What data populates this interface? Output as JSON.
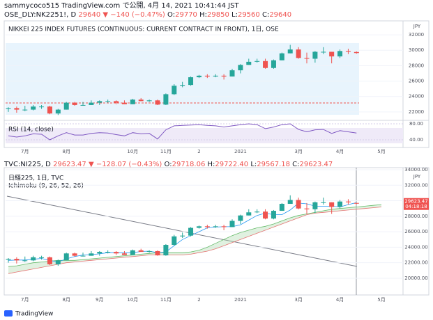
{
  "page": {
    "author_line": "sammycoco515 TradingView.com で公開, 4月 14, 2021 10:41:44 JST",
    "footer": "TradingView"
  },
  "chart_data": [
    {
      "type": "candlestick",
      "symbol": "OSE_DLY:NK2251!, D",
      "last": "29640",
      "change": "▼ −140 (−0.47%)",
      "ohlc": [
        [
          "O:",
          "29770"
        ],
        [
          "H:",
          "29850"
        ],
        [
          "L:",
          "29560"
        ],
        [
          "C:",
          "29640"
        ]
      ],
      "title": "NIKKEI 225 INDEX FUTURES (CONTINUOUS: CURRENT CONTRACT IN FRONT), 1日, OSE",
      "currency": "JPY",
      "categories": [
        null,
        null,
        "7月",
        null,
        null,
        null,
        null,
        "8月",
        null,
        null,
        null,
        null,
        null,
        null,
        null,
        "10月",
        null,
        null,
        null,
        "11月",
        null,
        null,
        null,
        "2",
        null,
        null,
        null,
        null,
        "2021",
        null,
        null,
        null,
        null,
        null,
        null,
        "3月",
        null,
        null,
        null,
        null,
        "4月",
        null,
        null,
        null,
        null,
        "5月"
      ],
      "open": [
        22400,
        22500,
        22300,
        22300,
        22700,
        22700,
        21800,
        22300,
        23200,
        22900,
        22900,
        23200,
        23400,
        23400,
        23200,
        23000,
        23600,
        23400,
        23500,
        22950,
        24300,
        25400,
        25500,
        26500,
        26700,
        26600,
        26700,
        26600,
        27400,
        28100,
        28500,
        28600,
        27700,
        28700,
        29600,
        30100,
        29000,
        28900,
        29800,
        29800,
        29200,
        29900,
        29770,
        null,
        null,
        null
      ],
      "high": [
        22600,
        22700,
        22800,
        22900,
        22900,
        22800,
        22400,
        23300,
        23300,
        23300,
        23500,
        23500,
        23600,
        23500,
        23500,
        23700,
        23800,
        23600,
        23600,
        24400,
        25600,
        25900,
        26600,
        26800,
        26900,
        26900,
        26900,
        27600,
        28200,
        28900,
        28900,
        28900,
        28800,
        29700,
        30700,
        30400,
        29700,
        29900,
        30400,
        29800,
        30100,
        30200,
        29850,
        null,
        null,
        null
      ],
      "low": [
        22000,
        21900,
        22100,
        22200,
        22400,
        21700,
        21600,
        22300,
        22800,
        22800,
        22900,
        22900,
        23200,
        23000,
        23000,
        23000,
        23400,
        23300,
        22900,
        22900,
        24200,
        25200,
        25400,
        26400,
        26400,
        26500,
        26200,
        26600,
        27000,
        28100,
        28400,
        27600,
        27600,
        28700,
        29600,
        28900,
        28300,
        28400,
        29500,
        28300,
        29000,
        29500,
        29560,
        null,
        null,
        null
      ],
      "close": [
        22500,
        22300,
        22300,
        22700,
        22700,
        21800,
        22300,
        23200,
        22900,
        22900,
        23200,
        23400,
        23400,
        23200,
        23000,
        23600,
        23400,
        23500,
        22950,
        24300,
        25400,
        25500,
        26500,
        26700,
        26600,
        26700,
        26600,
        27400,
        28100,
        28500,
        28600,
        27700,
        28700,
        29600,
        30100,
        29000,
        28900,
        29800,
        29800,
        29200,
        29900,
        29800,
        29640,
        null,
        null,
        null
      ],
      "up_color": "#26a69a",
      "down_color": "#ef5350",
      "ylim": [
        21000,
        33450
      ],
      "yticks": [
        22000,
        24000,
        26000,
        28000,
        30000,
        32000
      ],
      "grid": true,
      "rsi": {
        "title": "RSI (14, close)",
        "color": "#7e57c2",
        "values": [
          50,
          47,
          50,
          55,
          54,
          40,
          50,
          58,
          52,
          52,
          56,
          58,
          57,
          53,
          50,
          58,
          55,
          56,
          42,
          65,
          75,
          76,
          77,
          78,
          76,
          75,
          72,
          75,
          78,
          80,
          78,
          68,
          72,
          78,
          80,
          66,
          60,
          65,
          66,
          56,
          63,
          60,
          57,
          null,
          null,
          null
        ],
        "ylim": [
          27.8,
          87
        ],
        "yticks": [
          {
            "value": 40,
            "label": "40.00"
          },
          {
            "value": 80,
            "label": "80.00"
          }
        ]
      }
    },
    {
      "type": "candlestick",
      "symbol": "TVC:NI225, D",
      "last": "29623.47",
      "change": "▼ −128.07 (−0.43%)",
      "ohlc": [
        [
          "O:",
          "29718.06"
        ],
        [
          "H:",
          "29722.40"
        ],
        [
          "L:",
          "29567.18"
        ],
        [
          "C:",
          "29623.47"
        ]
      ],
      "title": "日経225, 1日, TVC",
      "currency": "JPY",
      "clock": "04:18:18",
      "categories": [
        null,
        null,
        "7月",
        null,
        null,
        null,
        null,
        "8月",
        null,
        null,
        null,
        "9月",
        null,
        null,
        null,
        "10月",
        null,
        null,
        null,
        "11月",
        null,
        null,
        null,
        "2",
        null,
        null,
        null,
        null,
        "2021",
        null,
        null,
        null,
        null,
        null,
        null,
        "3月",
        null,
        null,
        null,
        null,
        "4月",
        null,
        null,
        null,
        null,
        "5月"
      ],
      "open": [
        22400,
        22500,
        22300,
        22300,
        22700,
        22700,
        21800,
        22300,
        23200,
        22900,
        22900,
        23200,
        23400,
        23400,
        23200,
        23000,
        23600,
        23400,
        23500,
        22950,
        24300,
        25400,
        25500,
        26500,
        26700,
        26600,
        26700,
        26600,
        27400,
        28100,
        28500,
        28600,
        27700,
        28700,
        29600,
        30100,
        29000,
        28900,
        29800,
        29800,
        29200,
        29900,
        29718.06,
        null,
        null,
        null
      ],
      "high": [
        22600,
        22700,
        22800,
        22900,
        22900,
        22800,
        22400,
        23300,
        23300,
        23300,
        23500,
        23500,
        23600,
        23500,
        23500,
        23700,
        23800,
        23600,
        23600,
        24400,
        25600,
        25900,
        26600,
        26800,
        26900,
        26900,
        26900,
        27600,
        28200,
        28900,
        28900,
        28900,
        28800,
        29700,
        30700,
        30400,
        29700,
        29900,
        30400,
        29800,
        30100,
        30200,
        29722.4,
        null,
        null,
        null
      ],
      "low": [
        22000,
        21900,
        22100,
        22200,
        22400,
        21700,
        21600,
        22300,
        22800,
        22800,
        22900,
        22900,
        23200,
        23000,
        23000,
        23000,
        23400,
        23300,
        22900,
        22900,
        24200,
        25200,
        25400,
        26400,
        26400,
        26500,
        26200,
        26600,
        27000,
        28100,
        28400,
        27600,
        27600,
        28700,
        29600,
        28900,
        28300,
        28400,
        29500,
        28300,
        29000,
        29500,
        29567.18,
        null,
        null,
        null
      ],
      "close": [
        22500,
        22300,
        22300,
        22700,
        22700,
        21800,
        22300,
        23200,
        22900,
        22900,
        23200,
        23400,
        23400,
        23200,
        23000,
        23600,
        23400,
        23500,
        22950,
        24300,
        25400,
        25500,
        26500,
        26700,
        26600,
        26700,
        26600,
        27400,
        28100,
        28500,
        28600,
        27700,
        28700,
        29600,
        30100,
        29000,
        28900,
        29800,
        29800,
        29200,
        29900,
        29800,
        29623.47,
        null,
        null,
        null
      ],
      "up_color": "#26a69a",
      "down_color": "#ef5350",
      "ylim": [
        17930,
        34270
      ],
      "yticks": [
        {
          "value": 20000,
          "label": "20000.00"
        },
        {
          "value": 22000,
          "label": "22000.00"
        },
        {
          "value": 24000,
          "label": "24000.00"
        },
        {
          "value": 26000,
          "label": "26000.00"
        },
        {
          "value": 28000,
          "label": "28000.00"
        },
        {
          "value": 30000,
          "label": "30000.00"
        },
        {
          "value": 32000,
          "label": "32000.00"
        },
        {
          "value": 34000,
          "label": "34000.00"
        }
      ],
      "grid": true,
      "indicator": {
        "title": "Ichimoku (9, 26, 52, 26)",
        "cloud_color": "#a5d6a7",
        "series": [
          {
            "color": "#66bb6a",
            "values": [
              21500,
              21600,
              21800,
              22000,
              22100,
              22200,
              22300,
              22300,
              22300,
              22400,
              22500,
              22600,
              22700,
              22800,
              22900,
              23000,
              23100,
              23200,
              23300,
              23300,
              23300,
              23300,
              23400,
              23600,
              24000,
              24500,
              25000,
              25500,
              25900,
              26200,
              26500,
              26700,
              27000,
              27400,
              27800,
              28100,
              28300,
              28500,
              28700,
              28900,
              29000,
              29100,
              29200,
              29300,
              29400,
              29500
            ]
          },
          {
            "color": "#e57373",
            "values": [
              20600,
              20800,
              21000,
              21200,
              21400,
              21600,
              21800,
              22000,
              22100,
              22200,
              22300,
              22400,
              22500,
              22600,
              22700,
              22800,
              22900,
              23000,
              23000,
              23000,
              23000,
              23000,
              23100,
              23300,
              23500,
              23800,
              24200,
              24600,
              25000,
              25400,
              25800,
              26200,
              26600,
              27000,
              27400,
              27800,
              28200,
              28400,
              28500,
              28600,
              28700,
              28800,
              28900,
              29000,
              29100,
              29200
            ]
          },
          {
            "color": "#2196f3",
            "values": [
              22300,
              22350,
              22350,
              22450,
              22550,
              22300,
              22100,
              22500,
              22800,
              23000,
              23050,
              23150,
              23300,
              23300,
              23250,
              23300,
              23450,
              23500,
              23300,
              23400,
              24200,
              25000,
              25500,
              26000,
              26500,
              26600,
              26650,
              26650,
              26900,
              27500,
              28100,
              28400,
              28200,
              28200,
              28800,
              29700,
              29600,
              29300,
              29300,
              29300,
              29200,
              29500,
              29750,
              null,
              null,
              null
            ]
          }
        ]
      }
    }
  ]
}
